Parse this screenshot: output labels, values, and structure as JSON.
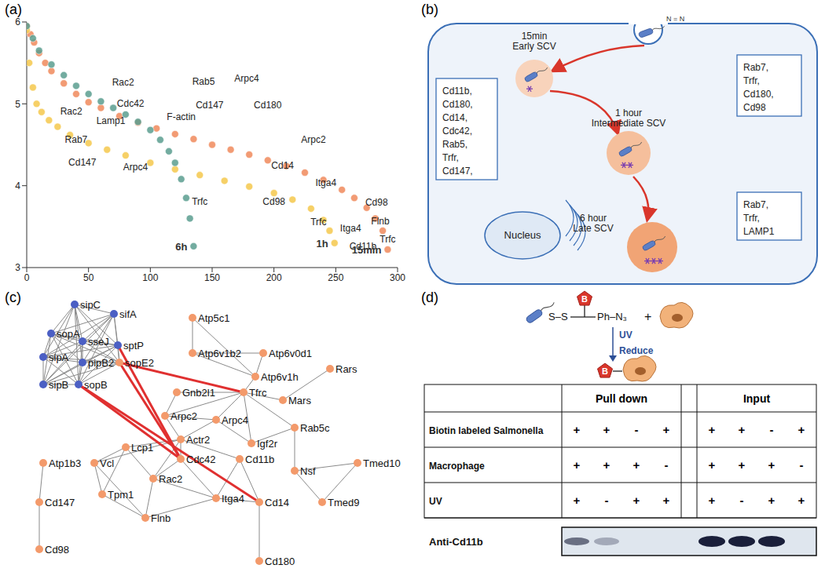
{
  "panels": [
    "(a)",
    "(b)",
    "(c)",
    "(d)"
  ],
  "chart_data": {
    "type": "scatter",
    "xlim": [
      0,
      300
    ],
    "xticks": [
      0,
      50,
      100,
      150,
      200,
      250,
      300
    ],
    "ylim": [
      3,
      6
    ],
    "yticks": [
      3,
      4,
      5,
      6
    ],
    "series": [
      {
        "name": "15min",
        "color": "#f0895c",
        "marker": "circle",
        "x": [
          0,
          3,
          6,
          10,
          15,
          20,
          30,
          40,
          50,
          60,
          75,
          90,
          105,
          120,
          135,
          150,
          165,
          180,
          195,
          210,
          225,
          240,
          255,
          265,
          275,
          282,
          288,
          292
        ],
        "values": [
          5.95,
          5.85,
          5.75,
          5.62,
          5.5,
          5.4,
          5.25,
          5.12,
          5.02,
          4.95,
          4.85,
          4.77,
          4.7,
          4.63,
          4.57,
          4.5,
          4.44,
          4.38,
          4.31,
          4.24,
          4.16,
          4.07,
          3.95,
          3.85,
          3.73,
          3.6,
          3.45,
          3.22
        ]
      },
      {
        "name": "1h",
        "color": "#f5c84c",
        "marker": "circle",
        "x": [
          0,
          2,
          5,
          8,
          12,
          18,
          25,
          35,
          50,
          65,
          80,
          100,
          120,
          140,
          160,
          180,
          200,
          215,
          230,
          240,
          245,
          249
        ],
        "values": [
          5.9,
          5.5,
          5.2,
          5.0,
          4.9,
          4.8,
          4.72,
          4.62,
          4.52,
          4.44,
          4.37,
          4.28,
          4.2,
          4.13,
          4.06,
          3.99,
          3.91,
          3.83,
          3.72,
          3.58,
          3.45,
          3.3
        ]
      },
      {
        "name": "6h",
        "color": "#5b9e8f",
        "marker": "circle",
        "x": [
          0,
          5,
          10,
          20,
          30,
          40,
          50,
          60,
          70,
          80,
          90,
          100,
          108,
          115,
          120,
          125,
          129,
          132,
          135
        ],
        "values": [
          5.95,
          5.8,
          5.65,
          5.48,
          5.35,
          5.22,
          5.12,
          5.03,
          4.95,
          4.87,
          4.78,
          4.68,
          4.56,
          4.42,
          4.28,
          4.08,
          3.85,
          3.6,
          3.26
        ]
      }
    ],
    "annotations": [
      {
        "text": "Rac2",
        "x": 78,
        "y": 5.25
      },
      {
        "text": "Cdc42",
        "x": 84,
        "y": 5.0
      },
      {
        "text": "Rab5",
        "x": 143,
        "y": 5.26
      },
      {
        "text": "Arpc4",
        "x": 178,
        "y": 5.3
      },
      {
        "text": "F-actin",
        "x": 125,
        "y": 4.83
      },
      {
        "text": "Cd147",
        "x": 148,
        "y": 4.98
      },
      {
        "text": "Cd180",
        "x": 195,
        "y": 4.98
      },
      {
        "text": "Arpc2",
        "x": 232,
        "y": 4.55
      },
      {
        "text": "Cd14",
        "x": 207,
        "y": 4.24
      },
      {
        "text": "Itga4",
        "x": 242,
        "y": 4.03
      },
      {
        "text": "Cd98",
        "x": 283,
        "y": 3.79
      },
      {
        "text": "Flnb",
        "x": 286,
        "y": 3.56
      },
      {
        "text": "Trfc",
        "x": 292,
        "y": 3.34
      },
      {
        "text": "Cd11b",
        "x": 272,
        "y": 3.25
      },
      {
        "text": "Lamp1",
        "x": 68,
        "y": 4.78
      },
      {
        "text": "Rac2",
        "x": 36,
        "y": 4.9
      },
      {
        "text": "Rab7",
        "x": 40,
        "y": 4.55
      },
      {
        "text": "Cd147",
        "x": 45,
        "y": 4.28
      },
      {
        "text": "Arpc4",
        "x": 88,
        "y": 4.22
      },
      {
        "text": "Trfc",
        "x": 140,
        "y": 3.8
      },
      {
        "text": "Cd98",
        "x": 200,
        "y": 3.8
      },
      {
        "text": "Trfc",
        "x": 236,
        "y": 3.55
      },
      {
        "text": "Itga4",
        "x": 262,
        "y": 3.47
      }
    ]
  },
  "diagram": {
    "probe": "N = N",
    "organelle": "Nucleus",
    "stages": [
      {
        "time": "15min",
        "name": "Early SCV",
        "proteins": [
          "Cd11b,",
          "Cd180,",
          "Cd14,",
          "Cdc42,",
          "Rab5,",
          "Trfr,",
          "Cd147,"
        ]
      },
      {
        "time": "1 hour",
        "name": "Intermediate SCV",
        "proteins": [
          "Rab7,",
          "Trfr,",
          "Cd180,",
          "Cd98"
        ]
      },
      {
        "time": "6 hour",
        "name": "Late SCV",
        "proteins": [
          "Rab7,",
          "Trfr,",
          "LAMP1"
        ]
      }
    ]
  },
  "network": {
    "nodes": [
      {
        "label": "sopA",
        "color": "#4b5fc4"
      },
      {
        "label": "sipC",
        "color": "#4b5fc4"
      },
      {
        "label": "sifA",
        "color": "#4b5fc4"
      },
      {
        "label": "sipA",
        "color": "#4b5fc4"
      },
      {
        "label": "sseJ",
        "color": "#4b5fc4"
      },
      {
        "label": "sptP",
        "color": "#4b5fc4"
      },
      {
        "label": "pipB2",
        "color": "#4b5fc4"
      },
      {
        "label": "sopE2",
        "color": "#f39a6b"
      },
      {
        "label": "sipB",
        "color": "#4b5fc4"
      },
      {
        "label": "sopB",
        "color": "#4b5fc4"
      },
      {
        "label": "Atp5c1",
        "color": "#f39a6b"
      },
      {
        "label": "Atp6v1b2",
        "color": "#f39a6b"
      },
      {
        "label": "Atp6v0d1",
        "color": "#f39a6b"
      },
      {
        "label": "Atp6v1h",
        "color": "#f39a6b"
      },
      {
        "label": "Rars",
        "color": "#f39a6b"
      },
      {
        "label": "Mars",
        "color": "#f39a6b"
      },
      {
        "label": "Gnb2l1",
        "color": "#f39a6b"
      },
      {
        "label": "Tfrc",
        "color": "#f39a6b"
      },
      {
        "label": "Arpc2",
        "color": "#f39a6b"
      },
      {
        "label": "Arpc4",
        "color": "#f39a6b"
      },
      {
        "label": "Rab5c",
        "color": "#f39a6b"
      },
      {
        "label": "Igf2r",
        "color": "#f39a6b"
      },
      {
        "label": "Nsf",
        "color": "#f39a6b"
      },
      {
        "label": "Tmed10",
        "color": "#f39a6b"
      },
      {
        "label": "Tmed9",
        "color": "#f39a6b"
      },
      {
        "label": "Actr2",
        "color": "#f39a6b"
      },
      {
        "label": "Cdc42",
        "color": "#f39a6b"
      },
      {
        "label": "Cd11b",
        "color": "#f39a6b"
      },
      {
        "label": "Rac2",
        "color": "#f39a6b"
      },
      {
        "label": "Itga4",
        "color": "#f39a6b"
      },
      {
        "label": "Cd14",
        "color": "#f39a6b"
      },
      {
        "label": "Cd180",
        "color": "#f39a6b"
      },
      {
        "label": "Lcp1",
        "color": "#f39a6b"
      },
      {
        "label": "Vcl",
        "color": "#f39a6b"
      },
      {
        "label": "Tpm1",
        "color": "#f39a6b"
      },
      {
        "label": "Flnb",
        "color": "#f39a6b"
      },
      {
        "label": "Atp1b3",
        "color": "#f39a6b"
      },
      {
        "label": "Cd147",
        "color": "#f39a6b"
      },
      {
        "label": "Cd98",
        "color": "#f39a6b"
      }
    ],
    "clique": [
      "sopA",
      "sipC",
      "sifA",
      "sipA",
      "sseJ",
      "sptP",
      "pipB2",
      "sopE2",
      "sipB",
      "sopB"
    ],
    "edges": [
      [
        "Atp5c1",
        "Atp6v1b2"
      ],
      [
        "Atp5c1",
        "Atp6v1h"
      ],
      [
        "Atp6v1b2",
        "Atp6v0d1"
      ],
      [
        "Atp6v1b2",
        "Atp6v1h"
      ],
      [
        "Atp6v0d1",
        "Atp6v1h"
      ],
      [
        "Atp6v1h",
        "Tfrc"
      ],
      [
        "Rars",
        "Mars"
      ],
      [
        "Mars",
        "Tfrc"
      ],
      [
        "Gnb2l1",
        "Tfrc"
      ],
      [
        "Gnb2l1",
        "Arpc2"
      ],
      [
        "Tfrc",
        "Arpc2"
      ],
      [
        "Tfrc",
        "Rab5c"
      ],
      [
        "Tfrc",
        "Igf2r"
      ],
      [
        "Tfrc",
        "Arpc4"
      ],
      [
        "Rab5c",
        "Igf2r"
      ],
      [
        "Rab5c",
        "Nsf"
      ],
      [
        "Nsf",
        "Tmed10"
      ],
      [
        "Nsf",
        "Tmed9"
      ],
      [
        "Tmed10",
        "Tmed9"
      ],
      [
        "Arpc2",
        "Actr2"
      ],
      [
        "Arpc2",
        "Arpc4"
      ],
      [
        "Arpc4",
        "Actr2"
      ],
      [
        "Arpc4",
        "Igf2r"
      ],
      [
        "Actr2",
        "Cdc42"
      ],
      [
        "Actr2",
        "Lcp1"
      ],
      [
        "Actr2",
        "Rac2"
      ],
      [
        "Actr2",
        "Cd11b"
      ],
      [
        "Actr2",
        "Vcl"
      ],
      [
        "Cdc42",
        "Rac2"
      ],
      [
        "Cdc42",
        "Itga4"
      ],
      [
        "Cd11b",
        "Itga4"
      ],
      [
        "Cd11b",
        "Cd14"
      ],
      [
        "Rac2",
        "Flnb"
      ],
      [
        "Rac2",
        "Itga4"
      ],
      [
        "Lcp1",
        "Vcl"
      ],
      [
        "Lcp1",
        "Tpm1"
      ],
      [
        "Lcp1",
        "Rac2"
      ],
      [
        "Vcl",
        "Tpm1"
      ],
      [
        "Vcl",
        "Flnb"
      ],
      [
        "Tpm1",
        "Flnb"
      ],
      [
        "Flnb",
        "Itga4"
      ],
      [
        "Itga4",
        "Cd14"
      ],
      [
        "Cd14",
        "Cd180"
      ],
      [
        "Atp1b3",
        "Cd147"
      ],
      [
        "Cd147",
        "Cd98"
      ]
    ],
    "highlight_edges": [
      [
        "sopB",
        "Cdc42"
      ],
      [
        "sptP",
        "Cdc42"
      ],
      [
        "sopE2",
        "Cdc42"
      ],
      [
        "sopE2",
        "Tfrc"
      ],
      [
        "sopB",
        "Cd14"
      ]
    ],
    "highlight_color": "#e03030"
  },
  "assay": {
    "scheme": {
      "linker": "S–S",
      "group": "Ph–N₃",
      "tag": "B",
      "plus": "+",
      "steps": [
        "UV",
        "Reduce"
      ]
    },
    "table": {
      "groups": [
        "Pull down",
        "Input"
      ],
      "rows": [
        {
          "label": "Biotin labeled Salmonella",
          "pull_down": [
            "+",
            "+",
            "-",
            "+"
          ],
          "input": [
            "+",
            "+",
            "-",
            "+"
          ]
        },
        {
          "label": "Macrophage",
          "pull_down": [
            "+",
            "+",
            "+",
            "-"
          ],
          "input": [
            "+",
            "+",
            "+",
            "-"
          ]
        },
        {
          "label": "UV",
          "pull_down": [
            "+",
            "-",
            "+",
            "+"
          ],
          "input": [
            "+",
            "-",
            "+",
            "+"
          ]
        }
      ]
    },
    "blot": {
      "label": "Anti-Cd11b",
      "pull_down": [
        0.6,
        0.3,
        0,
        0
      ],
      "input": [
        1,
        1,
        1,
        0
      ]
    }
  }
}
